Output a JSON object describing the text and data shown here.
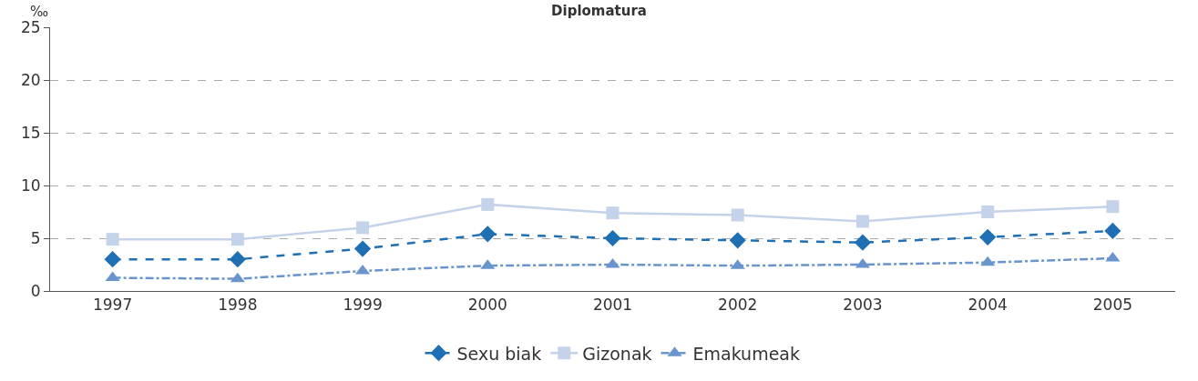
{
  "chart_data": {
    "type": "line",
    "title": "Diplomatura",
    "ylabel": "‰",
    "categories": [
      "1997",
      "1998",
      "1999",
      "2000",
      "2001",
      "2002",
      "2003",
      "2004",
      "2005"
    ],
    "series": [
      {
        "name": "Sexu biak",
        "color": "#1f6fb4",
        "marker": "diamond",
        "line_style": "dashed",
        "values": [
          3.0,
          3.0,
          4.0,
          5.4,
          5.0,
          4.8,
          4.6,
          5.1,
          5.7
        ]
      },
      {
        "name": "Gizonak",
        "color": "#c5d3ea",
        "marker": "square",
        "line_style": "solid",
        "values": [
          4.9,
          4.9,
          6.0,
          8.2,
          7.4,
          7.2,
          6.6,
          7.5,
          8.0
        ]
      },
      {
        "name": "Emakumeak",
        "color": "#6a94cc",
        "marker": "triangle",
        "line_style": "dashdot",
        "values": [
          1.25,
          1.15,
          1.9,
          2.4,
          2.5,
          2.4,
          2.5,
          2.7,
          3.1
        ]
      }
    ],
    "ylim": [
      0,
      25
    ],
    "yticks": [
      0,
      5,
      10,
      15,
      20,
      25
    ],
    "grid": "y",
    "legend": "bottom"
  }
}
